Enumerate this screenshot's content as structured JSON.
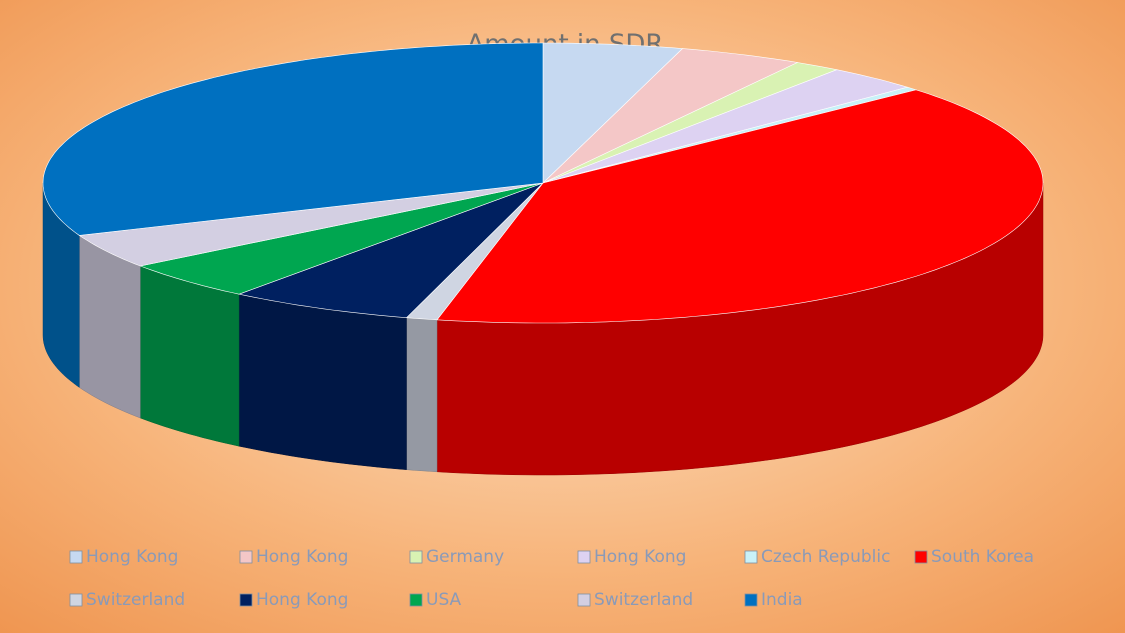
{
  "chart_data": {
    "type": "pie3d",
    "title": "Amount in SDR",
    "categories": [
      "Hong Kong",
      "Hong Kong",
      "Germany",
      "Hong Kong",
      "Czech Republic",
      "South Korea",
      "Switzerland",
      "Hong Kong",
      "USA",
      "Switzerland",
      "India"
    ],
    "values": [
      4.5,
      4,
      1.5,
      3,
      0.4,
      40,
      1,
      6,
      4.5,
      4,
      31.1
    ],
    "colors": [
      "#c6d9f1",
      "#f4c7c7",
      "#d9f2b3",
      "#ddd2f2",
      "#c9f1f8",
      "#ff0000",
      "#cfd5e2",
      "#002060",
      "#00a650",
      "#d3cfe2",
      "#0070c0"
    ],
    "legend": "bottom"
  }
}
